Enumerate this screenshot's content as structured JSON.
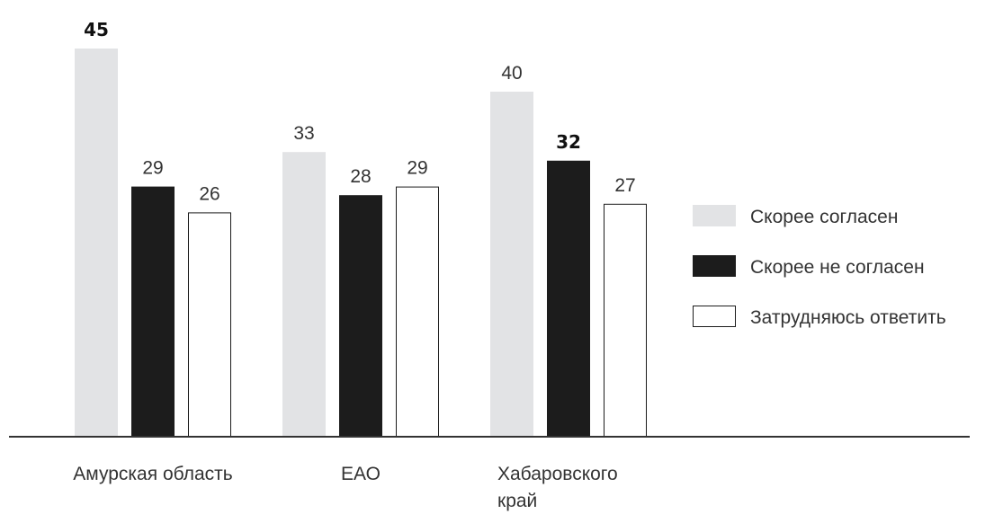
{
  "chart_data": {
    "type": "bar",
    "categories": [
      [
        "Амурская область"
      ],
      [
        "ЕАО"
      ],
      [
        "Хабаровского",
        "край"
      ]
    ],
    "series": [
      {
        "name": "Скорее согласен",
        "values": [
          45,
          33,
          40
        ],
        "color": "#e2e3e5",
        "stroke": "none"
      },
      {
        "name": "Скорее не согласен",
        "values": [
          29,
          28,
          32
        ],
        "color": "#1c1c1c",
        "stroke": "#1c1c1c"
      },
      {
        "name": "Затрудняюсь ответить",
        "values": [
          26,
          29,
          27
        ],
        "color": "#ffffff",
        "stroke": "#1c1c1c"
      }
    ],
    "value_labels": [
      [
        "45",
        "29",
        "26"
      ],
      [
        "33",
        "28",
        "29"
      ],
      [
        "40",
        "32",
        "27"
      ]
    ],
    "bold_labels": [
      [
        true,
        false,
        false
      ],
      [
        false,
        false,
        false
      ],
      [
        false,
        true,
        false
      ]
    ],
    "ylim": [
      0,
      50
    ],
    "grid": false,
    "legend_position": "right"
  }
}
